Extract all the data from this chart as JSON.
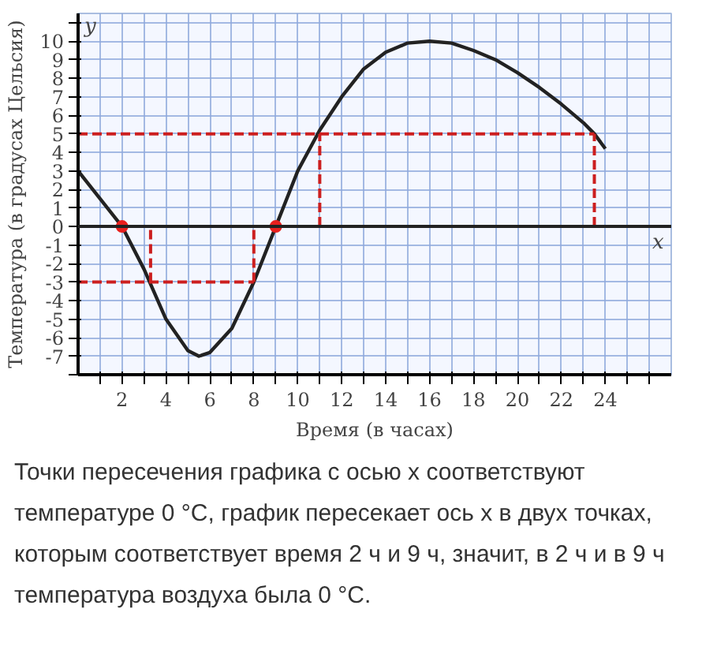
{
  "chart_data": {
    "type": "line",
    "xlabel": "Время (в часах)",
    "ylabel": "Температура (в градусах Цельсия)",
    "series": [
      {
        "color": "#222222",
        "x": [
          0,
          1,
          2,
          3,
          4,
          5,
          5.5,
          6,
          7,
          8,
          9,
          10,
          11,
          12,
          13,
          14,
          15,
          16,
          17,
          18,
          19,
          20,
          21,
          22,
          23,
          23.5,
          24
        ],
        "values": [
          3,
          1.5,
          0,
          -2.3,
          -5,
          -6.7,
          -7,
          -6.8,
          -5.5,
          -3,
          0,
          3,
          5.2,
          7,
          8.5,
          9.4,
          9.9,
          10,
          9.9,
          9.5,
          9,
          8.3,
          7.5,
          6.6,
          5.6,
          5,
          4.2
        ]
      },
      {
        "type": "line",
        "line_style": "dashed",
        "color": "#cc1f1f",
        "x": [
          0,
          23.5
        ],
        "values": [
          5,
          5
        ]
      },
      {
        "type": "line",
        "line_style": "dashed",
        "color": "#cc1f1f",
        "x": [
          11,
          11
        ],
        "values": [
          0,
          5
        ]
      },
      {
        "type": "line",
        "line_style": "dashed",
        "color": "#cc1f1f",
        "x": [
          23.5,
          23.5
        ],
        "values": [
          0,
          5
        ]
      },
      {
        "type": "line",
        "line_style": "dashed",
        "color": "#cc1f1f",
        "x": [
          0,
          8
        ],
        "values": [
          -3,
          -3
        ]
      },
      {
        "type": "line",
        "line_style": "dashed",
        "color": "#cc1f1f",
        "x": [
          3.3,
          3.3
        ],
        "values": [
          -3,
          0
        ]
      },
      {
        "type": "line",
        "line_style": "dashed",
        "color": "#cc1f1f",
        "x": [
          8,
          8
        ],
        "values": [
          -3,
          0
        ]
      },
      {
        "type": "scatter",
        "marker": "circle",
        "color": "#e8201e",
        "x": [
          2,
          9
        ],
        "values": [
          0,
          0
        ]
      }
    ],
    "xlim": [
      0,
      27
    ],
    "ylim": [
      -8,
      11.5
    ],
    "xticks": [
      {
        "value": 1,
        "label": null
      },
      2,
      {
        "value": 3,
        "label": null
      },
      4,
      {
        "value": 5,
        "label": null
      },
      6,
      {
        "value": 7,
        "label": null
      },
      8,
      {
        "value": 9,
        "label": null
      },
      10,
      {
        "value": 11,
        "label": null
      },
      12,
      {
        "value": 13,
        "label": null
      },
      14,
      {
        "value": 15,
        "label": null
      },
      16,
      {
        "value": 17,
        "label": null
      },
      18,
      {
        "value": 19,
        "label": null
      },
      20,
      {
        "value": 21,
        "label": null
      },
      22,
      {
        "value": 23,
        "label": null
      },
      24,
      {
        "value": 25,
        "label": null
      },
      {
        "value": 26,
        "label": null
      }
    ],
    "yticks": [
      {
        "value": -8,
        "label": null
      },
      -7,
      -6,
      -5,
      -4,
      -3,
      -2,
      -1,
      0,
      1,
      2,
      3,
      4,
      5,
      6,
      7,
      8,
      9,
      10,
      {
        "value": 11,
        "label": null
      }
    ],
    "grid": true,
    "marker": "none",
    "line_style": "solid",
    "annotations": [
      "y",
      "x",
      "Точки пересечения графика с осью x соответствуют температуре 0 °C, график пересекает ось x в двух точках, которым соответствует время 2 ч и 9 ч, значит, в 2 ч и в 9 ч температура воздуха была 0 °C."
    ]
  }
}
